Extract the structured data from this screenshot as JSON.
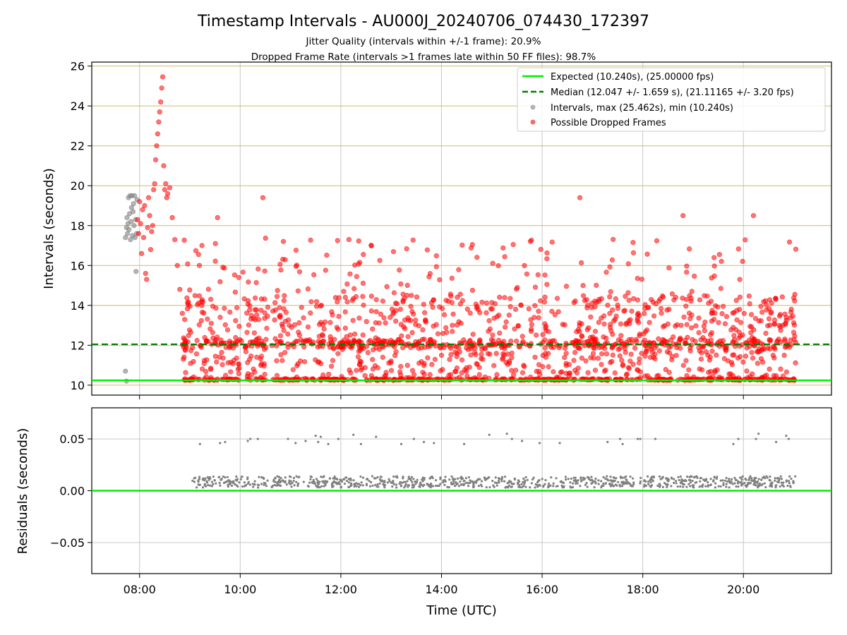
{
  "figure": {
    "title": "Timestamp Intervals - AU000J_20240706_074430_172397",
    "subtitle1": "Jitter Quality (intervals within +/-1 frame): 20.9%",
    "subtitle2": "Dropped Frame Rate (intervals >1 frames late within 50 FF files): 98.7%"
  },
  "colors": {
    "expected": "#00ee00",
    "median": "#008000",
    "intervals": "#808080",
    "dropped": "#ff0000",
    "hgrid_top": "#d2b96a",
    "grid": "#c8c8c8"
  },
  "chart_data": [
    {
      "type": "scatter",
      "xlabel": "",
      "ylabel": "Intervals (seconds)",
      "x_ticks": [
        "08:00",
        "10:00",
        "12:00",
        "14:00",
        "16:00",
        "18:00",
        "20:00"
      ],
      "y_ticks": [
        "10",
        "12",
        "14",
        "16",
        "18",
        "20",
        "22",
        "24",
        "26"
      ],
      "xlim_hours": [
        7.05,
        21.75
      ],
      "ylim": [
        9.5,
        26.2
      ],
      "hgrid": true,
      "vgrid": true,
      "legend_position": "top-right",
      "legend": [
        {
          "label": "Expected (10.240s), (25.00000 fps)",
          "style": "solid-line"
        },
        {
          "label": "Median (12.047 +/- 1.659 s), (21.11165 +/- 3.20 fps)",
          "style": "dashed-line"
        },
        {
          "label": "Intervals, max (25.462s), min (10.240s)",
          "style": "gray-dot"
        },
        {
          "label": "Possible Dropped Frames",
          "style": "red-dot"
        }
      ],
      "expected_interval": 10.24,
      "median_interval": 12.047,
      "max_interval": 25.462,
      "min_interval": 10.24,
      "series": [
        {
          "name": "Intervals, max (25.462s), min (10.240s)",
          "points": [
            [
              7.72,
              17.4
            ],
            [
              7.74,
              17.9
            ],
            [
              7.75,
              18.4
            ],
            [
              7.76,
              17.6
            ],
            [
              7.77,
              18.1
            ],
            [
              7.78,
              19.4
            ],
            [
              7.79,
              17.8
            ],
            [
              7.8,
              18.6
            ],
            [
              7.81,
              19.5
            ],
            [
              7.82,
              17.3
            ],
            [
              7.83,
              18.2
            ],
            [
              7.84,
              18.9
            ],
            [
              7.85,
              19.5
            ],
            [
              7.86,
              17.5
            ],
            [
              7.87,
              18.7
            ],
            [
              7.88,
              19.1
            ],
            [
              7.89,
              18.0
            ],
            [
              7.9,
              19.5
            ],
            [
              7.91,
              17.4
            ],
            [
              7.92,
              18.3
            ],
            [
              7.93,
              15.7
            ],
            [
              7.94,
              17.6
            ],
            [
              7.95,
              19.3
            ],
            [
              7.72,
              10.7
            ],
            [
              7.74,
              10.2
            ]
          ]
        },
        {
          "name": "Possible Dropped Frames",
          "points": [
            [
              7.96,
              18.3
            ],
            [
              7.98,
              17.6
            ],
            [
              8.0,
              19.2
            ],
            [
              8.02,
              18.1
            ],
            [
              8.04,
              16.6
            ],
            [
              8.06,
              18.8
            ],
            [
              8.08,
              17.4
            ],
            [
              8.1,
              19.0
            ],
            [
              8.12,
              15.6
            ],
            [
              8.14,
              15.3
            ],
            [
              8.16,
              17.9
            ],
            [
              8.18,
              19.4
            ],
            [
              8.2,
              18.5
            ],
            [
              8.22,
              16.8
            ],
            [
              8.24,
              17.7
            ],
            [
              8.26,
              18.0
            ],
            [
              8.28,
              19.8
            ],
            [
              8.3,
              20.1
            ],
            [
              8.32,
              21.3
            ],
            [
              8.34,
              22.0
            ],
            [
              8.36,
              22.6
            ],
            [
              8.38,
              23.2
            ],
            [
              8.4,
              23.7
            ],
            [
              8.42,
              24.2
            ],
            [
              8.44,
              24.9
            ],
            [
              8.46,
              25.46
            ],
            [
              8.48,
              21.0
            ],
            [
              8.5,
              19.8
            ],
            [
              8.52,
              20.1
            ],
            [
              8.54,
              19.4
            ],
            [
              8.56,
              19.6
            ],
            [
              8.6,
              19.9
            ],
            [
              8.65,
              18.4
            ],
            [
              8.7,
              17.3
            ],
            [
              8.75,
              16.0
            ],
            [
              8.8,
              14.8
            ],
            [
              8.85,
              13.6
            ],
            [
              9.55,
              18.4
            ],
            [
              10.45,
              19.4
            ],
            [
              16.75,
              19.4
            ],
            [
              18.8,
              18.5
            ],
            [
              20.2,
              18.5
            ]
          ],
          "note": "plus several thousand additional points spread between 10.24 and ~18 s from 08:50 to 21:05 UTC (dense band at 10.24 s and near 12 s)"
        }
      ]
    },
    {
      "type": "scatter",
      "xlabel": "Time (UTC)",
      "ylabel": "Residuals (seconds)",
      "x_ticks": [
        "08:00",
        "10:00",
        "12:00",
        "14:00",
        "16:00",
        "18:00",
        "20:00"
      ],
      "y_ticks": [
        "0.05",
        "0.00",
        "−0.05"
      ],
      "xlim_hours": [
        7.05,
        21.75
      ],
      "ylim": [
        -0.08,
        0.08
      ],
      "hgrid": true,
      "vgrid": true,
      "baseline": 0.0,
      "series": [
        {
          "name": "",
          "points": [
            [
              9.2,
              0.045
            ],
            [
              9.6,
              0.046
            ],
            [
              9.7,
              0.047
            ],
            [
              10.15,
              0.048
            ],
            [
              10.2,
              0.05
            ],
            [
              10.35,
              0.05
            ],
            [
              10.95,
              0.05
            ],
            [
              11.1,
              0.046
            ],
            [
              11.3,
              0.048
            ],
            [
              11.5,
              0.053
            ],
            [
              11.55,
              0.047
            ],
            [
              11.6,
              0.052
            ],
            [
              11.75,
              0.045
            ],
            [
              11.95,
              0.05
            ],
            [
              12.25,
              0.054
            ],
            [
              12.4,
              0.045
            ],
            [
              12.7,
              0.052
            ],
            [
              13.2,
              0.045
            ],
            [
              13.45,
              0.05
            ],
            [
              13.65,
              0.047
            ],
            [
              13.85,
              0.046
            ],
            [
              14.45,
              0.045
            ],
            [
              14.95,
              0.054
            ],
            [
              15.3,
              0.055
            ],
            [
              15.4,
              0.05
            ],
            [
              15.6,
              0.048
            ],
            [
              15.95,
              0.046
            ],
            [
              16.35,
              0.046
            ],
            [
              17.3,
              0.047
            ],
            [
              17.55,
              0.05
            ],
            [
              17.6,
              0.045
            ],
            [
              17.9,
              0.05
            ],
            [
              17.95,
              0.05
            ],
            [
              18.25,
              0.05
            ],
            [
              19.8,
              0.045
            ],
            [
              19.9,
              0.05
            ],
            [
              20.25,
              0.05
            ],
            [
              20.3,
              0.055
            ],
            [
              20.65,
              0.047
            ],
            [
              20.85,
              0.053
            ],
            [
              20.9,
              0.05
            ]
          ],
          "note": "plus a dense band of residuals between 0.002 and 0.015 s from 09:05 to 21:05 UTC"
        }
      ]
    }
  ]
}
